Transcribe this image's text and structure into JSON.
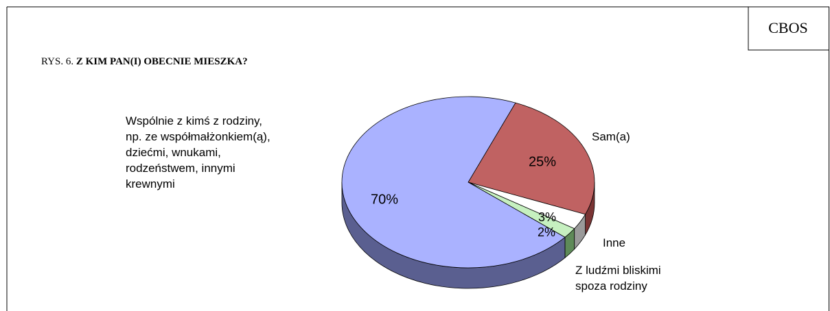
{
  "figure_label": "RYS. 6.",
  "source": "CBOS",
  "chart_data": {
    "type": "pie3d",
    "title": "Z KIM PAN(I) OBECNIE MIESZKA?",
    "categories": [
      "Wspólnie z kimś z rodziny,\nnp. ze współmałżonkiem(ą),\ndziećmi, wnukami,\nrodzeństwem, innymi\nkrewnymi",
      "Sam(a)",
      "Inne",
      "Z ludźmi bliskimi\nspoza rodziny"
    ],
    "values": [
      70,
      25,
      3,
      2
    ],
    "value_labels": [
      "70%",
      "25%",
      "3%",
      "2%"
    ],
    "colors": [
      "#aab2ff",
      "#c06262",
      "#ffffff",
      "#c6f0c0"
    ],
    "side_colors": [
      "#5a5f90",
      "#7a3434",
      "#9a9a9a",
      "#5e8a58"
    ]
  }
}
